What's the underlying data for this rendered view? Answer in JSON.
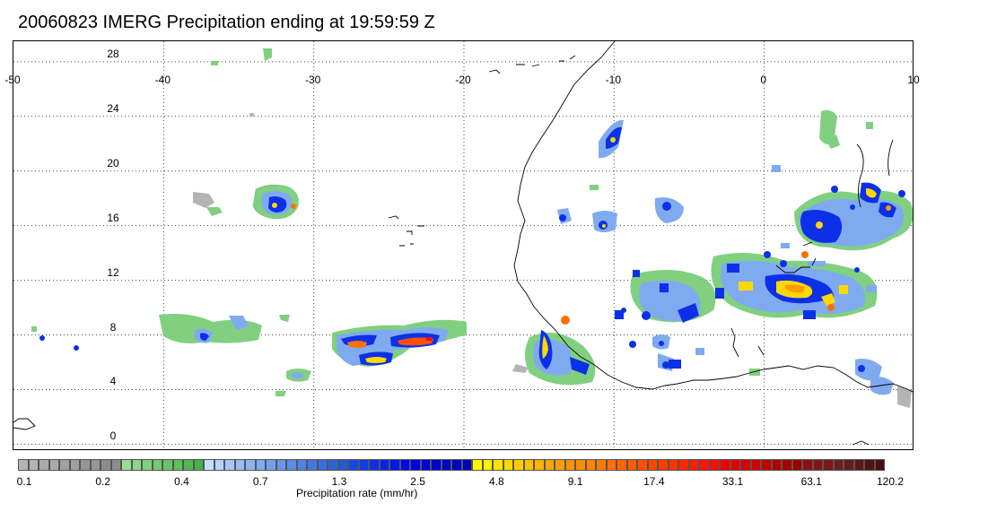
{
  "title": "20060823 IMERG Precipitation ending at 19:59:59 Z",
  "map": {
    "lon_range": [
      -50,
      10
    ],
    "lat_range": [
      -0.5,
      29.5
    ],
    "lon_ticks": [
      "-50",
      "-40",
      "-30",
      "-20",
      "-10",
      "0",
      "10"
    ],
    "lat_ticks": [
      "28",
      "24",
      "20",
      "16",
      "12",
      "8",
      "4",
      "0"
    ],
    "coastline_color": "#000000",
    "grid_style": "dotted"
  },
  "colorbar": {
    "colors": [
      "#b4b4b4",
      "#b4b4b4",
      "#aaaaaa",
      "#aaaaaa",
      "#a0a0a0",
      "#a0a0a0",
      "#969696",
      "#969696",
      "#8c8c8c",
      "#8c8c8c",
      "#98dc98",
      "#8cd68c",
      "#80d080",
      "#74ca74",
      "#68c468",
      "#5cbe5c",
      "#50b850",
      "#44b244",
      "#c8dcff",
      "#b8d0fc",
      "#a8c6fa",
      "#98bcf6",
      "#8cb4f2",
      "#80aaf0",
      "#74a0ee",
      "#6896ec",
      "#5c8ce8",
      "#5082e4",
      "#4478e0",
      "#386edc",
      "#2c64d8",
      "#205ad4",
      "#1448e8",
      "#103ce8",
      "#0c30e8",
      "#0824e8",
      "#0418e8",
      "#000ce8",
      "#0000e0",
      "#0000d8",
      "#0000d0",
      "#0000c8",
      "#0000c0",
      "#0000b8",
      "#fff800",
      "#fff000",
      "#ffe400",
      "#ffd800",
      "#ffcc00",
      "#ffc000",
      "#ffb400",
      "#ffa800",
      "#ff9c00",
      "#ff9400",
      "#ff8c00",
      "#ff8400",
      "#ff7a00",
      "#ff7000",
      "#ff6600",
      "#ff5c00",
      "#ff5000",
      "#ff4600",
      "#ff3c00",
      "#ff3200",
      "#ff2800",
      "#ff1e00",
      "#ff1400",
      "#ff0a00",
      "#f00000",
      "#e40000",
      "#d80000",
      "#cc0000",
      "#c00000",
      "#b40000",
      "#a80000",
      "#9c0000",
      "#8c1010",
      "#821414",
      "#781818",
      "#6e1c1c",
      "#641c1c",
      "#5a1818",
      "#501414",
      "#461010"
    ],
    "tick_labels": [
      "0.1",
      "0.2",
      "0.4",
      "0.7",
      "1.3",
      "2.5",
      "4.8",
      "9.1",
      "17.4",
      "33.1",
      "63.1",
      "120.2"
    ],
    "unit_label": "Precipitation rate (mm/hr)"
  }
}
